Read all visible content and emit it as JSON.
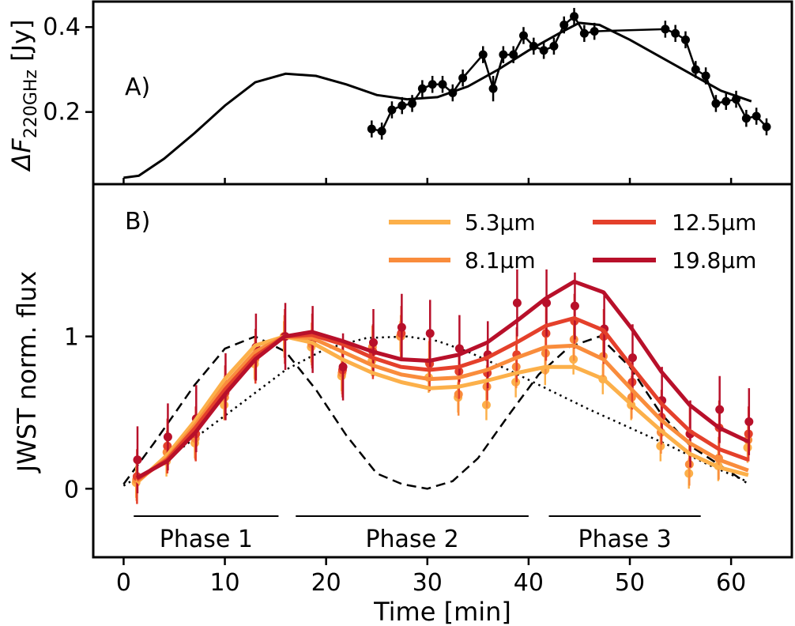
{
  "chart_data": [
    {
      "panel_label": "A)",
      "type": "line",
      "ylabel_main": "ΔF",
      "ylabel_sub": "220GHz",
      "ylabel_unit": " [Jy]",
      "yticks": [
        0.2,
        0.4
      ],
      "ylim": [
        0.03,
        0.46
      ],
      "xlim": [
        -3,
        66
      ],
      "grid": false,
      "series": [
        {
          "kind": "points",
          "color": "#000000",
          "x": [
            24.5,
            25.5,
            26.5,
            27.5,
            28.5,
            29.5,
            30.5,
            31.5,
            32.5,
            33.5,
            35.5,
            36.5,
            37.5,
            38.5,
            39.5,
            40.5,
            41.5,
            42.5,
            43.5,
            44.5,
            45.5,
            46.5,
            53.5,
            54.5,
            55.5,
            56.5,
            57.5,
            58.5,
            59.5,
            60.5,
            61.5,
            62.5,
            63.5
          ],
          "y": [
            0.16,
            0.155,
            0.205,
            0.215,
            0.22,
            0.255,
            0.265,
            0.265,
            0.245,
            0.28,
            0.335,
            0.255,
            0.335,
            0.335,
            0.38,
            0.355,
            0.345,
            0.355,
            0.405,
            0.425,
            0.385,
            0.39,
            0.395,
            0.385,
            0.37,
            0.3,
            0.285,
            0.22,
            0.225,
            0.23,
            0.185,
            0.19,
            0.165
          ],
          "yerr": [
            0.02,
            0.02,
            0.02,
            0.02,
            0.02,
            0.02,
            0.02,
            0.02,
            0.02,
            0.02,
            0.02,
            0.03,
            0.02,
            0.02,
            0.02,
            0.02,
            0.02,
            0.02,
            0.02,
            0.02,
            0.02,
            0.02,
            0.02,
            0.02,
            0.02,
            0.02,
            0.02,
            0.02,
            0.02,
            0.02,
            0.02,
            0.02,
            0.02
          ]
        },
        {
          "kind": "model",
          "color": "#000000",
          "x": [
            0,
            1.5,
            4,
            7,
            10,
            13,
            16,
            19,
            22,
            25,
            28,
            31,
            34,
            37,
            40,
            43,
            45,
            47,
            50,
            53,
            56,
            59,
            62
          ],
          "y": [
            0.045,
            0.05,
            0.09,
            0.15,
            0.215,
            0.27,
            0.29,
            0.285,
            0.265,
            0.24,
            0.23,
            0.235,
            0.26,
            0.3,
            0.345,
            0.385,
            0.41,
            0.405,
            0.37,
            0.33,
            0.29,
            0.25,
            0.225
          ]
        }
      ]
    },
    {
      "panel_label": "B)",
      "type": "line",
      "ylabel": "JWST norm. flux",
      "xlabel": "Time [min]",
      "xticks": [
        0,
        10,
        20,
        30,
        40,
        50,
        60
      ],
      "yticks": [
        0,
        1
      ],
      "xlim": [
        -3,
        66
      ],
      "ylim": [
        -0.45,
        2.0
      ],
      "grid": false,
      "legend_position": "top-right",
      "series": [
        {
          "name": "5.3µm",
          "color": "#fcb04a",
          "x": [
            1.3,
            4.3,
            7.1,
            10.0,
            13.0,
            15.9,
            18.6,
            21.6,
            24.6,
            27.4,
            30.2,
            33.1,
            35.9,
            38.8,
            41.7,
            44.5,
            47.4,
            50.2,
            53.1,
            55.9,
            58.8,
            61.7
          ],
          "y": [
            0.04,
            0.22,
            0.45,
            0.72,
            0.94,
            1.0,
            0.96,
            0.85,
            0.76,
            0.7,
            0.66,
            0.67,
            0.71,
            0.76,
            0.8,
            0.8,
            0.72,
            0.55,
            0.38,
            0.23,
            0.14,
            0.09
          ],
          "points_y": [
            0.04,
            0.18,
            0.3,
            0.55,
            0.82,
            1.0,
            0.93,
            0.74,
            0.84,
            1.0,
            0.73,
            0.6,
            0.55,
            0.7,
            0.78,
            0.85,
            0.72,
            0.55,
            0.28,
            0.1,
            0.15,
            0.27
          ]
        },
        {
          "name": "8.1µm",
          "color": "#f98c3c",
          "x": [
            1.3,
            4.3,
            7.1,
            10.0,
            13.0,
            15.9,
            18.6,
            21.6,
            24.6,
            27.4,
            30.2,
            33.1,
            35.9,
            38.8,
            41.7,
            44.5,
            47.4,
            50.2,
            53.1,
            55.9,
            58.8,
            61.7
          ],
          "y": [
            0.05,
            0.2,
            0.42,
            0.68,
            0.9,
            1.0,
            0.99,
            0.9,
            0.81,
            0.75,
            0.72,
            0.73,
            0.78,
            0.86,
            0.93,
            0.94,
            0.85,
            0.65,
            0.45,
            0.3,
            0.19,
            0.12
          ],
          "points_y": [
            0.06,
            0.24,
            0.33,
            0.6,
            0.85,
            1.0,
            0.95,
            0.76,
            0.93,
            1.0,
            0.83,
            0.62,
            0.67,
            0.8,
            0.89,
            0.98,
            0.87,
            0.6,
            0.37,
            0.16,
            0.2,
            0.32
          ]
        },
        {
          "name": "12.5µm",
          "color": "#e4402b",
          "x": [
            1.3,
            4.3,
            7.1,
            10.0,
            13.0,
            15.9,
            18.6,
            21.6,
            24.6,
            27.4,
            30.2,
            33.1,
            35.9,
            38.8,
            41.7,
            44.5,
            47.4,
            50.2,
            53.1,
            55.9,
            58.8,
            61.7
          ],
          "y": [
            0.06,
            0.19,
            0.4,
            0.65,
            0.87,
            1.0,
            1.01,
            0.95,
            0.86,
            0.8,
            0.78,
            0.8,
            0.86,
            0.96,
            1.07,
            1.12,
            1.04,
            0.8,
            0.56,
            0.38,
            0.26,
            0.19
          ],
          "points_y": [
            0.08,
            0.28,
            0.36,
            0.63,
            0.87,
            1.0,
            0.97,
            0.78,
            0.9,
            1.02,
            0.82,
            0.77,
            0.76,
            0.88,
            1.02,
            1.1,
            1.0,
            0.7,
            0.47,
            0.36,
            0.4,
            0.36
          ]
        },
        {
          "name": "19.8µm",
          "color": "#b8102a",
          "x": [
            1.3,
            4.3,
            7.1,
            10.0,
            13.0,
            15.9,
            18.6,
            21.6,
            24.6,
            27.4,
            30.2,
            33.1,
            35.9,
            38.8,
            41.7,
            44.5,
            47.4,
            50.2,
            53.1,
            55.9,
            58.8,
            61.7
          ],
          "y": [
            0.07,
            0.18,
            0.37,
            0.62,
            0.85,
            1.0,
            1.03,
            0.97,
            0.9,
            0.85,
            0.84,
            0.88,
            0.96,
            1.1,
            1.25,
            1.36,
            1.29,
            1.05,
            0.77,
            0.55,
            0.4,
            0.31
          ],
          "points_y": [
            0.19,
            0.34,
            0.46,
            0.67,
            0.93,
            1.0,
            0.98,
            0.8,
            0.96,
            1.06,
            1.02,
            0.92,
            0.88,
            1.22,
            1.22,
            1.2,
            1.05,
            0.86,
            0.58,
            0.36,
            0.52,
            0.44
          ]
        },
        {
          "kind": "dashed-model",
          "color": "#000000",
          "x": [
            0,
            3,
            7,
            10,
            13,
            16,
            19,
            22,
            25,
            27.5,
            30,
            32.5,
            35,
            38,
            41,
            44,
            47,
            50,
            53,
            56,
            59,
            61.5
          ],
          "y": [
            0.03,
            0.3,
            0.68,
            0.92,
            1.0,
            0.9,
            0.65,
            0.35,
            0.1,
            0.03,
            0.0,
            0.05,
            0.2,
            0.48,
            0.75,
            0.93,
            1.0,
            0.8,
            0.5,
            0.28,
            0.15,
            0.04
          ]
        },
        {
          "kind": "dotted-model",
          "color": "#000000",
          "x": [
            0,
            4,
            8,
            12,
            16,
            20,
            24,
            28,
            31,
            34,
            38,
            42,
            46,
            50,
            54,
            58,
            61.5
          ],
          "y": [
            0.02,
            0.18,
            0.38,
            0.58,
            0.78,
            0.92,
            0.99,
            1.0,
            0.97,
            0.9,
            0.78,
            0.65,
            0.52,
            0.4,
            0.28,
            0.15,
            0.05
          ]
        }
      ],
      "phases": [
        {
          "label": "Phase 1",
          "x_start": 1.0,
          "x_end": 15.3
        },
        {
          "label": "Phase 2",
          "x_start": 17.0,
          "x_end": 40.0
        },
        {
          "label": "Phase 3",
          "x_start": 42.0,
          "x_end": 57.0
        }
      ]
    }
  ]
}
